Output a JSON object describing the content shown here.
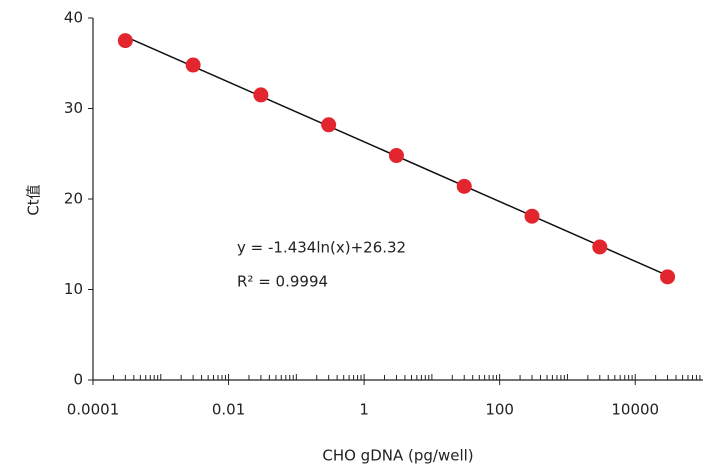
{
  "chart_data": {
    "type": "scatter",
    "x_label": "CHO gDNA (pg/well)",
    "y_label": "Ct值",
    "x_scale": "log",
    "xlim": [
      0.0001,
      100000
    ],
    "xticks": [
      0.0001,
      0.01,
      1,
      100,
      10000
    ],
    "ylim": [
      0,
      40
    ],
    "yticks": [
      0,
      10,
      20,
      30,
      40
    ],
    "series": [
      {
        "color": "#e3262d",
        "x": [
          0.0003,
          0.003,
          0.03,
          0.3,
          3,
          30,
          300,
          3000,
          30000
        ],
        "values": [
          37.5,
          34.8,
          31.5,
          28.2,
          24.8,
          21.4,
          18.1,
          14.7,
          11.4
        ]
      }
    ],
    "annotations": [
      "y = -1.434ln(x)+26.32",
      "R² = 0.9994"
    ]
  }
}
